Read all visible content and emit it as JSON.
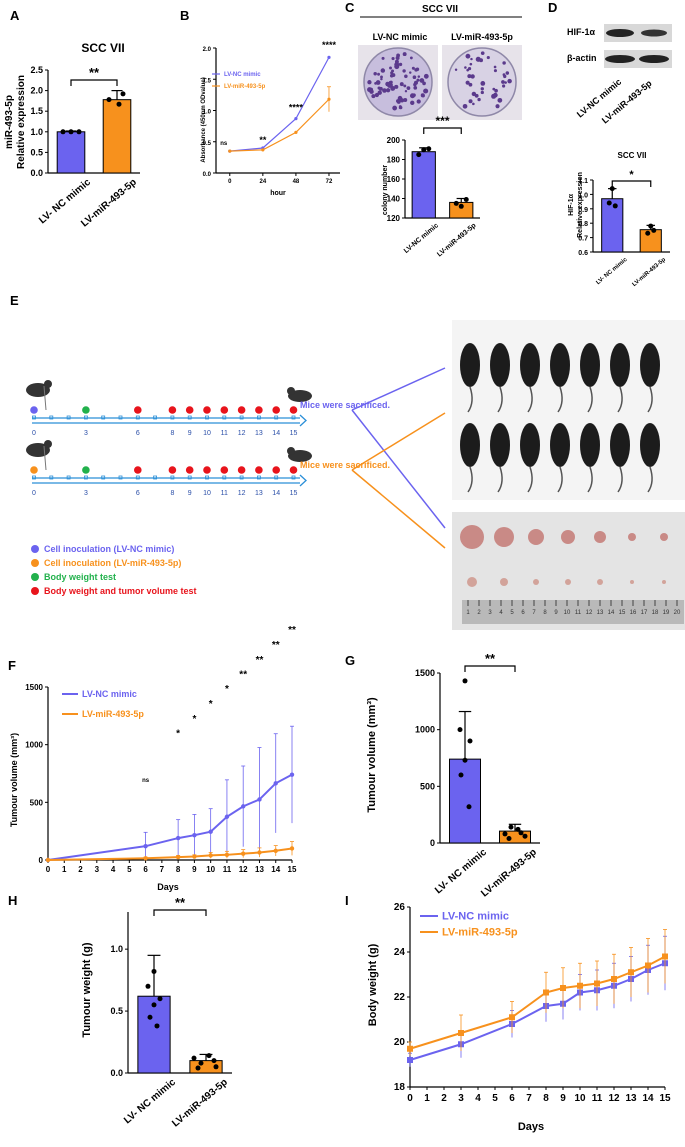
{
  "colors": {
    "blue": "#6b63ef",
    "orange": "#f7911d",
    "green": "#22b14c",
    "red": "#e8141c",
    "axis": "#000000"
  },
  "panels": {
    "A": "A",
    "B": "B",
    "C": "C",
    "D": "D",
    "E": "E",
    "F": "F",
    "G": "G",
    "H": "H",
    "I": "I"
  },
  "A": {
    "title": "SCC VII",
    "ylabel1": "miR-493-5p",
    "ylabel2": "Relative expression",
    "yticks": [
      "0.0",
      "0.5",
      "1.0",
      "1.5",
      "2.0",
      "2.5"
    ],
    "cats": [
      "LV- NC mimic",
      "LV-miR-493-5p"
    ],
    "sig": "**"
  },
  "B": {
    "ylabel": "Absorbance (450nm ODvalue)",
    "xlabel": "hour",
    "xticks": [
      "0",
      "24",
      "48",
      "72"
    ],
    "yticks": [
      "0.0",
      "0.5",
      "1.0",
      "1.5",
      "2.0"
    ],
    "legend": [
      "LV-NC mimic",
      "LV-miR-493-5p"
    ],
    "sig": [
      "ns",
      "**",
      "****",
      "****"
    ]
  },
  "C": {
    "title": "SCC VII",
    "cols": [
      "LV-NC mimic",
      "LV-miR-493-5p"
    ],
    "ylabel": "colony number",
    "yticks": [
      "120",
      "140",
      "160",
      "180",
      "200"
    ],
    "cats": [
      "LV-NC mimic",
      "LV-miR-493-5p"
    ],
    "sig": "***"
  },
  "D": {
    "blots": [
      "HIF-1α",
      "β-actin"
    ],
    "cols": [
      "LV-NC mimic",
      "LV-miR-493-5p"
    ],
    "title": "SCC VII",
    "ylabel1": "HIF-1α",
    "ylabel2": "Relative expression",
    "yticks": [
      "0.6",
      "0.7",
      "0.8",
      "0.9",
      "1.0",
      "1.1"
    ],
    "cats": [
      "LV- NC mimic",
      "LV-miR-493-5p"
    ],
    "sig": "*"
  },
  "E": {
    "timeline_days": [
      "0",
      "3",
      "6",
      "8",
      "9",
      "10",
      "11",
      "12",
      "13",
      "14",
      "15"
    ],
    "sacrificed": "Mice were sacrificed.",
    "legend": [
      "Cell inoculation (LV-NC mimic)",
      "Cell inoculation (LV-miR-493-5p)",
      "Body weight test",
      "Body weight and tumor volume test"
    ],
    "ruler": [
      "1",
      "2",
      "3",
      "4",
      "5",
      "6",
      "7",
      "8",
      "9",
      "10",
      "11",
      "12",
      "13",
      "14",
      "15",
      "16",
      "17",
      "18",
      "19",
      "20"
    ]
  },
  "F": {
    "ylabel": "Tumour volume (mm³)",
    "xlabel": "Days",
    "yticks": [
      "0",
      "500",
      "1000",
      "1500"
    ],
    "xticks": [
      "0",
      "1",
      "2",
      "3",
      "4",
      "5",
      "6",
      "7",
      "8",
      "9",
      "10",
      "11",
      "12",
      "13",
      "14",
      "15"
    ],
    "legend": [
      "LV-NC mimic",
      "LV-miR-493-5p"
    ],
    "sig": [
      "ns",
      "*",
      "*",
      "*",
      "*",
      "**",
      "**",
      "**",
      "**"
    ]
  },
  "G": {
    "ylabel": "Tumour volume (mm³)",
    "yticks": [
      "0",
      "500",
      "1000",
      "1500"
    ],
    "cats": [
      "LV- NC mimic",
      "LV-miR-493-5p"
    ],
    "sig": "**"
  },
  "H": {
    "ylabel": "Tumour weight (g)",
    "yticks": [
      "0.0",
      "0.5",
      "1.0"
    ],
    "cats": [
      "LV- NC mimic",
      "LV-miR-493-5p"
    ],
    "sig": "**"
  },
  "I": {
    "ylabel": "Body weight (g)",
    "xlabel": "Days",
    "yticks": [
      "18",
      "20",
      "22",
      "24",
      "26"
    ],
    "xticks": [
      "0",
      "1",
      "2",
      "3",
      "4",
      "5",
      "6",
      "7",
      "8",
      "9",
      "10",
      "11",
      "12",
      "13",
      "14",
      "15"
    ],
    "legend": [
      "LV-NC mimic",
      "LV-miR-493-5p"
    ]
  },
  "chart_data": [
    {
      "panel": "A",
      "type": "bar",
      "categories": [
        "LV- NC mimic",
        "LV-miR-493-5p"
      ],
      "values": [
        1.0,
        1.78
      ],
      "errors": [
        0.02,
        0.22
      ],
      "ylim": [
        0,
        2.5
      ]
    },
    {
      "panel": "B",
      "type": "line",
      "x": [
        0,
        24,
        48,
        72
      ],
      "series": [
        {
          "name": "LV-NC mimic",
          "values": [
            0.35,
            0.4,
            0.87,
            1.85
          ]
        },
        {
          "name": "LV-miR-493-5p",
          "values": [
            0.35,
            0.37,
            0.65,
            1.18
          ]
        }
      ],
      "ylim": [
        0,
        2
      ]
    },
    {
      "panel": "C",
      "type": "bar",
      "categories": [
        "LV-NC mimic",
        "LV-miR-493-5p"
      ],
      "values": [
        188,
        136
      ],
      "errors": [
        4,
        4
      ],
      "ylim": [
        120,
        200
      ]
    },
    {
      "panel": "D",
      "type": "bar",
      "categories": [
        "LV- NC mimic",
        "LV-miR-493-5p"
      ],
      "values": [
        0.97,
        0.755
      ],
      "errors": [
        0.07,
        0.03
      ],
      "ylim": [
        0.6,
        1.1
      ]
    },
    {
      "panel": "F",
      "type": "line",
      "x": [
        0,
        6,
        8,
        9,
        10,
        11,
        12,
        13,
        14,
        15
      ],
      "series": [
        {
          "name": "LV-NC mimic",
          "values": [
            0,
            120,
            190,
            215,
            245,
            375,
            465,
            525,
            665,
            740
          ]
        },
        {
          "name": "LV-miR-493-5p",
          "values": [
            0,
            15,
            25,
            30,
            40,
            45,
            55,
            65,
            80,
            100
          ]
        }
      ],
      "ylim": [
        0,
        1500
      ]
    },
    {
      "panel": "G",
      "type": "bar",
      "categories": [
        "LV- NC mimic",
        "LV-miR-493-5p"
      ],
      "values": [
        740,
        105
      ],
      "errors": [
        420,
        60
      ],
      "ylim": [
        0,
        1500
      ]
    },
    {
      "panel": "H",
      "type": "bar",
      "categories": [
        "LV- NC mimic",
        "LV-miR-493-5p"
      ],
      "values": [
        0.62,
        0.1
      ],
      "errors": [
        0.33,
        0.05
      ],
      "ylim": [
        0,
        1.3
      ]
    },
    {
      "panel": "I",
      "type": "line",
      "x": [
        0,
        3,
        6,
        8,
        9,
        10,
        11,
        12,
        13,
        14,
        15
      ],
      "series": [
        {
          "name": "LV-NC mimic",
          "values": [
            19.2,
            19.9,
            20.8,
            21.6,
            21.7,
            22.2,
            22.3,
            22.5,
            22.8,
            23.2,
            23.5
          ]
        },
        {
          "name": "LV-miR-493-5p",
          "values": [
            19.7,
            20.4,
            21.1,
            22.2,
            22.4,
            22.5,
            22.6,
            22.8,
            23.1,
            23.4,
            23.8
          ]
        }
      ],
      "ylim": [
        18,
        26
      ]
    }
  ]
}
